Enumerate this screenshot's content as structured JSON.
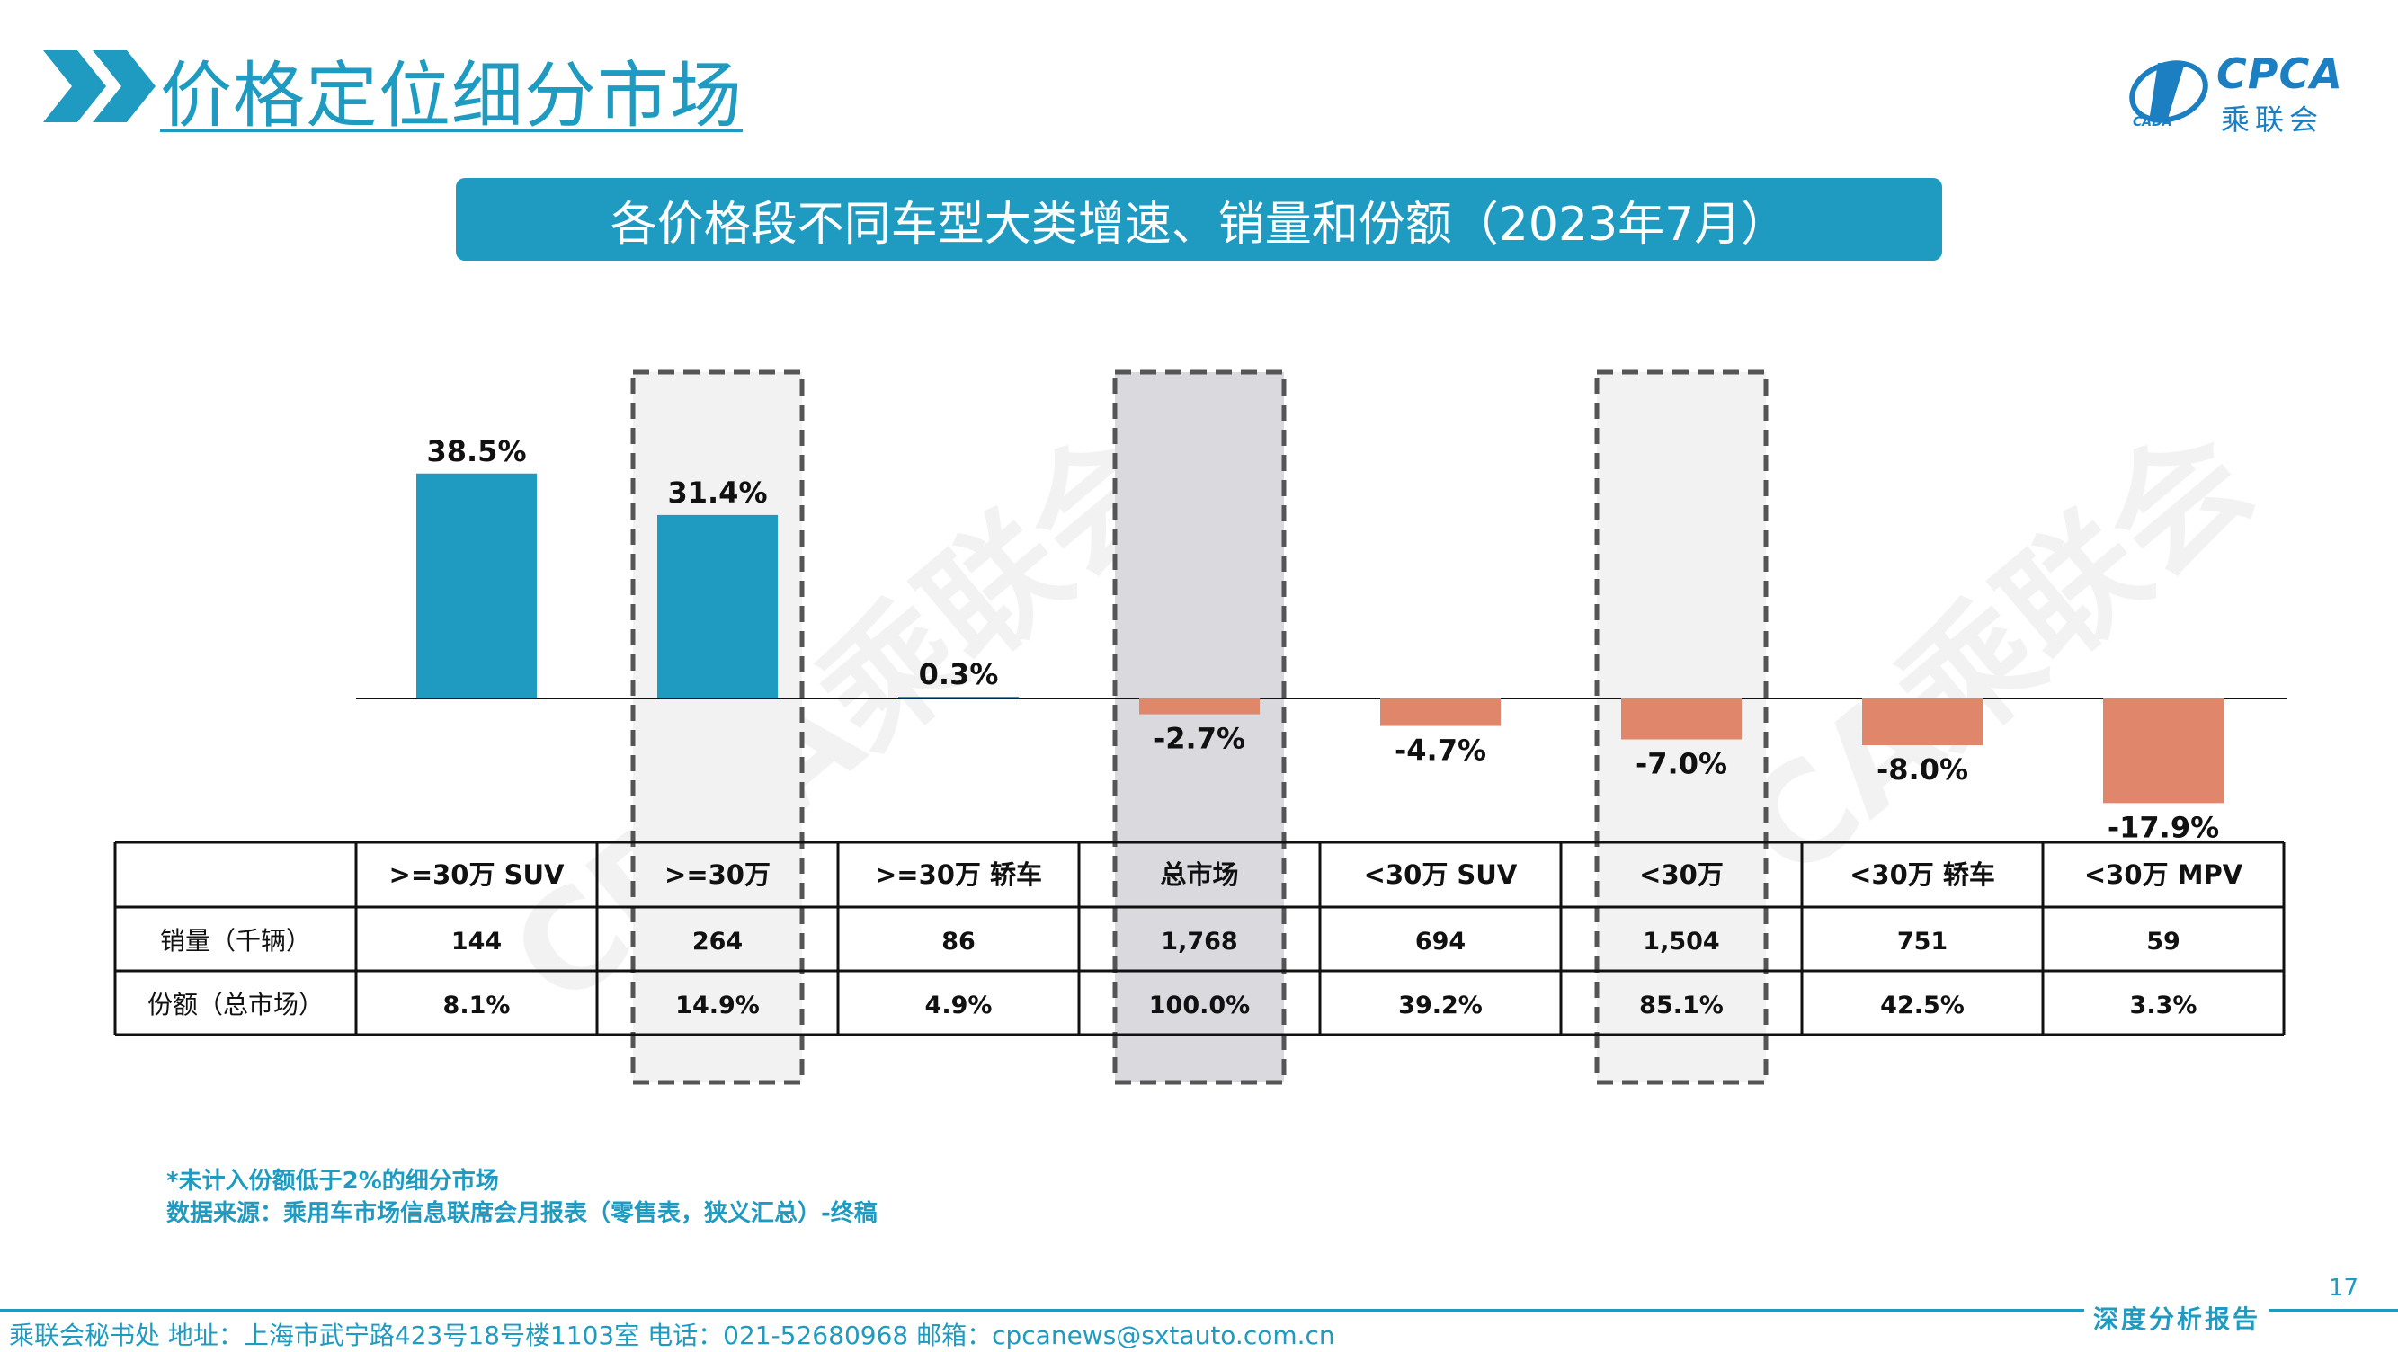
{
  "header": {
    "title": "价格定位细分市场"
  },
  "logo": {
    "name": "CPCA",
    "sub": "乘联会",
    "small": "CADA"
  },
  "banner": {
    "text": "各价格段不同车型大类增速、销量和份额（2023年7月）"
  },
  "colors": {
    "positive": "#1f9ac0",
    "negative": "#e0866a",
    "accent": "#1f9ac0",
    "highlight_dark": "#d9d9de",
    "highlight_light": "#f2f2f2"
  },
  "chart_data": {
    "type": "bar",
    "categories": [
      ">=30万 SUV",
      ">=30万",
      ">=30万 轿车",
      "总市场",
      "<30万 SUV",
      "<30万",
      "<30万 轿车",
      "<30万 MPV"
    ],
    "values": [
      38.5,
      31.4,
      0.3,
      -2.7,
      -4.7,
      -7.0,
      -8.0,
      -17.9
    ],
    "value_labels": [
      "38.5%",
      "31.4%",
      "0.3%",
      "-2.7%",
      "-4.7%",
      "-7.0%",
      "-8.0%",
      "-17.9%"
    ],
    "highlighted": [
      1,
      3,
      5
    ],
    "ylim": [
      -18,
      39
    ]
  },
  "table": {
    "header_blank": "",
    "rows": [
      {
        "label": "销量（千辆）",
        "values": [
          "144",
          "264",
          "86",
          "1,768",
          "694",
          "1,504",
          "751",
          "59"
        ]
      },
      {
        "label": "份额（总市场）",
        "values": [
          "8.1%",
          "14.9%",
          "4.9%",
          "100.0%",
          "39.2%",
          "85.1%",
          "42.5%",
          "3.3%"
        ]
      }
    ]
  },
  "notes": {
    "line1": "*未计入份额低于2%的细分市场",
    "line2": "数据来源：乘用车市场信息联席会月报表（零售表，狭义汇总）-终稿"
  },
  "footer": {
    "text": "乘联会秘书处   地址：上海市武宁路423号18号楼1103室  电话：021-52680968   邮箱：cpcanews@sxtauto.com.cn",
    "tag": "深度分析报告",
    "page": "17"
  },
  "watermark": "CPCA乘联会"
}
